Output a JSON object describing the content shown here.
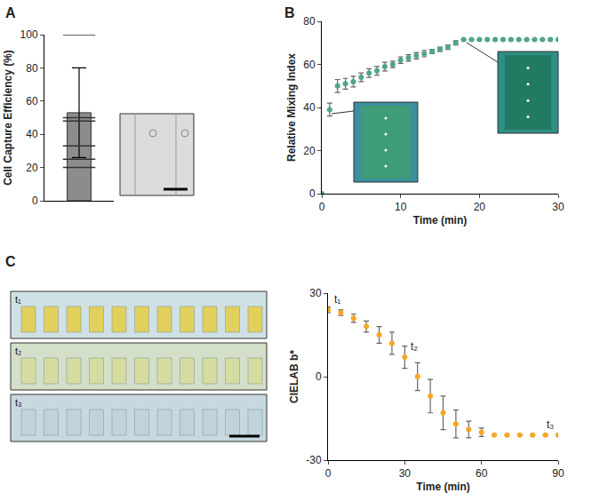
{
  "chart_data": [
    {
      "type": "bar",
      "panel_label": "A",
      "y_label": "Cell Capture Efficiency (%)",
      "categories": [
        null
      ],
      "series": [
        {
          "type": "bar",
          "color": "#8c8c8c",
          "values": [
            53
          ],
          "errors": [
            27
          ],
          "points": [
            [
              100,
              50,
              48,
              33,
              25,
              20
            ]
          ],
          "marker": "line-ew"
        }
      ],
      "ylim": [
        0,
        100
      ],
      "yticks": [
        0,
        20,
        40,
        60,
        80,
        100
      ],
      "tick_labels": "y",
      "grid": false
    },
    {
      "type": "scatter",
      "panel_label": "B",
      "x_label": "Time (min)",
      "y_label": "Relative Mixing Index",
      "x": [
        0,
        1,
        2,
        3,
        4,
        5,
        6,
        7,
        8,
        9,
        10,
        11,
        12,
        13,
        14,
        15,
        16,
        17,
        18,
        19,
        20,
        21,
        22,
        23,
        24,
        25,
        26,
        27,
        28,
        29,
        30
      ],
      "series": [
        {
          "color": "#4fa58a",
          "marker": "circle",
          "values": [
            0,
            39,
            50,
            51,
            52,
            54,
            56,
            57,
            59,
            60,
            62,
            63,
            64,
            65,
            66,
            67,
            68,
            70,
            71.5,
            71.5,
            71.5,
            71.5,
            71.5,
            71.5,
            71.5,
            71.5,
            71.5,
            71.5,
            71.5,
            71.5,
            71.5
          ],
          "errors": [
            0,
            3,
            3,
            2.5,
            2.5,
            2,
            2,
            2,
            2,
            1.5,
            1.5,
            1.5,
            1.5,
            1.5,
            1,
            1,
            1,
            1,
            0,
            0,
            0,
            0,
            0,
            0,
            0,
            0,
            0,
            0,
            0,
            0,
            0
          ]
        }
      ],
      "xlim": [
        0,
        30
      ],
      "xticks": [
        0,
        10,
        20,
        30
      ],
      "ylim": [
        0,
        80
      ],
      "yticks": [
        0,
        20,
        40,
        60,
        80
      ],
      "grid": false
    },
    {
      "type": "scatter",
      "panel_label": "C",
      "x_label": "Time (min)",
      "y_label": "CIELAB b*",
      "image_labels": [
        "t₁",
        "t₂",
        "t₃"
      ],
      "x": [
        0,
        5,
        10,
        15,
        20,
        25,
        30,
        35,
        40,
        45,
        50,
        55,
        60,
        65,
        70,
        75,
        80,
        85,
        90
      ],
      "series": [
        {
          "color": "#f5a623",
          "marker": "circle",
          "values": [
            24,
            23,
            21,
            18,
            15,
            12,
            7,
            0,
            -7,
            -13,
            -17,
            -19,
            -20,
            -21,
            -21,
            -21,
            -21,
            -21,
            -21
          ],
          "errors": [
            1,
            1,
            1.5,
            2,
            3,
            4,
            4,
            5,
            6,
            6,
            5,
            3,
            1.5,
            0,
            0,
            0,
            0,
            0,
            0
          ]
        }
      ],
      "annotations": [
        {
          "x": 0,
          "y": 24,
          "text": "t₁"
        },
        {
          "x": 30,
          "y": 7,
          "text": "t₂"
        },
        {
          "x": 90,
          "y": -21,
          "text": "t₃"
        }
      ],
      "xlim": [
        0,
        90
      ],
      "xticks": [
        0,
        30,
        60,
        90
      ],
      "ylim": [
        -30,
        30
      ],
      "yticks": [
        -30,
        0,
        30
      ],
      "grid": false
    }
  ]
}
